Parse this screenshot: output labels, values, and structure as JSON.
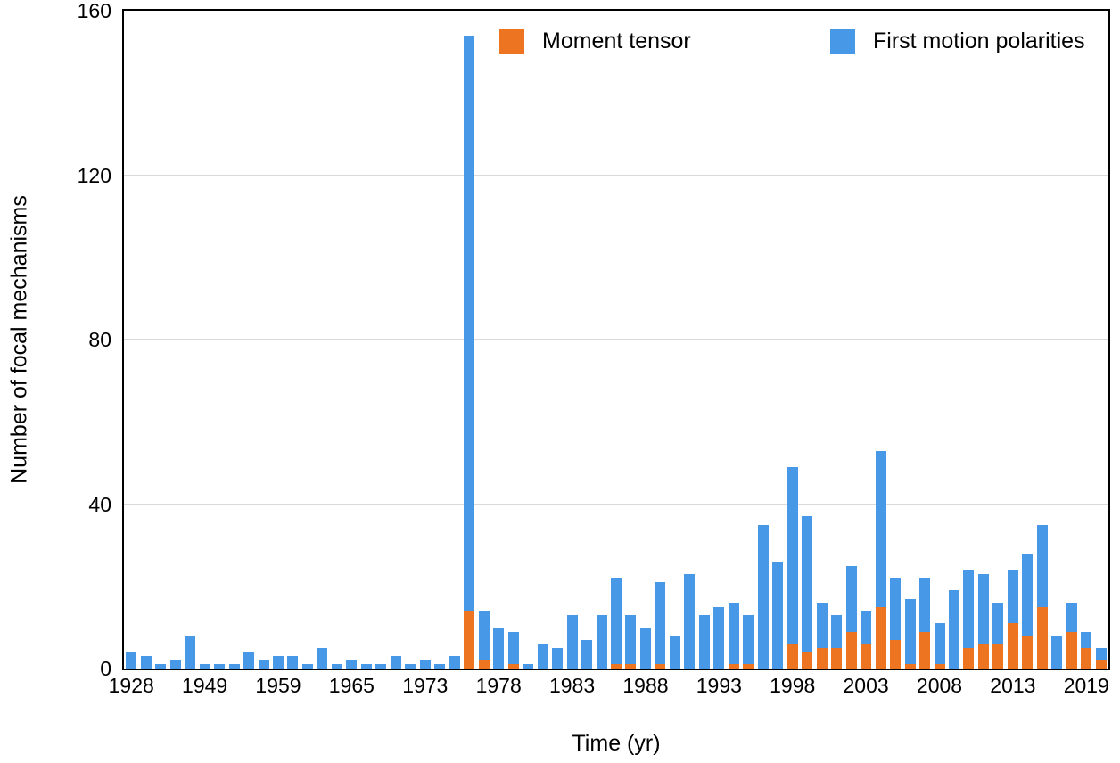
{
  "chart_data": {
    "type": "bar",
    "stacked": true,
    "title": "",
    "xlabel": "Time (yr)",
    "ylabel": "Number of focal mechanisms",
    "ylim": [
      0,
      160
    ],
    "yticks": [
      0,
      40,
      80,
      120,
      160
    ],
    "grid": "horizontal",
    "legend_position": "top-inside",
    "colors": {
      "moment_tensor": "#ED7421",
      "first_motion_polarities": "#4799E8",
      "gridline": "#D9D9D9",
      "axis": "#000000"
    },
    "categories": [
      "1928",
      "",
      "",
      "",
      "",
      "1949",
      "",
      "",
      "",
      "",
      "1959",
      "",
      "",
      "",
      "",
      "1965",
      "",
      "",
      "",
      "",
      "1973",
      "",
      "",
      "",
      "",
      "1978",
      "",
      "",
      "",
      "",
      "1983",
      "",
      "",
      "",
      "",
      "1988",
      "",
      "",
      "",
      "",
      "1993",
      "",
      "",
      "",
      "",
      "1998",
      "",
      "",
      "",
      "",
      "2003",
      "",
      "",
      "",
      "",
      "2008",
      "",
      "",
      "",
      "",
      "2013",
      "",
      "",
      "",
      "",
      "2019",
      ""
    ],
    "tick_labels": [
      "1928",
      "1949",
      "1959",
      "1965",
      "1973",
      "1978",
      "1983",
      "1988",
      "1993",
      "1998",
      "2003",
      "2008",
      "2013",
      "2019"
    ],
    "series": [
      {
        "name": "Moment tensor",
        "color": "#ED7421",
        "values": [
          0,
          0,
          0,
          0,
          0,
          0,
          0,
          0,
          0,
          0,
          0,
          0,
          0,
          0,
          0,
          0,
          0,
          0,
          0,
          0,
          0,
          0,
          0,
          14,
          2,
          0,
          1,
          0,
          0,
          0,
          0,
          0,
          0,
          1,
          1,
          0,
          1,
          0,
          0,
          0,
          0,
          1,
          1,
          0,
          0,
          6,
          4,
          5,
          5,
          9,
          6,
          15,
          7,
          1,
          9,
          1,
          0,
          5,
          6,
          6,
          11,
          8,
          15,
          0,
          9,
          5,
          2
        ]
      },
      {
        "name": "First motion polarities",
        "color": "#4799E8",
        "values": [
          4,
          3,
          1,
          2,
          8,
          1,
          1,
          1,
          4,
          2,
          3,
          3,
          1,
          5,
          1,
          2,
          1,
          1,
          3,
          1,
          2,
          1,
          3,
          140,
          12,
          10,
          8,
          1,
          6,
          5,
          13,
          7,
          13,
          21,
          12,
          10,
          20,
          8,
          23,
          13,
          15,
          15,
          12,
          35,
          26,
          43,
          33,
          11,
          8,
          16,
          8,
          38,
          15,
          16,
          13,
          10,
          19,
          19,
          17,
          10,
          13,
          20,
          20,
          8,
          7,
          4,
          3
        ]
      }
    ],
    "stacked_totals_note": "bar total = moment_tensor + first_motion_polarities; peak bar (1976) total 154, peaks 1998=49, 2004=53, 2015=35"
  }
}
